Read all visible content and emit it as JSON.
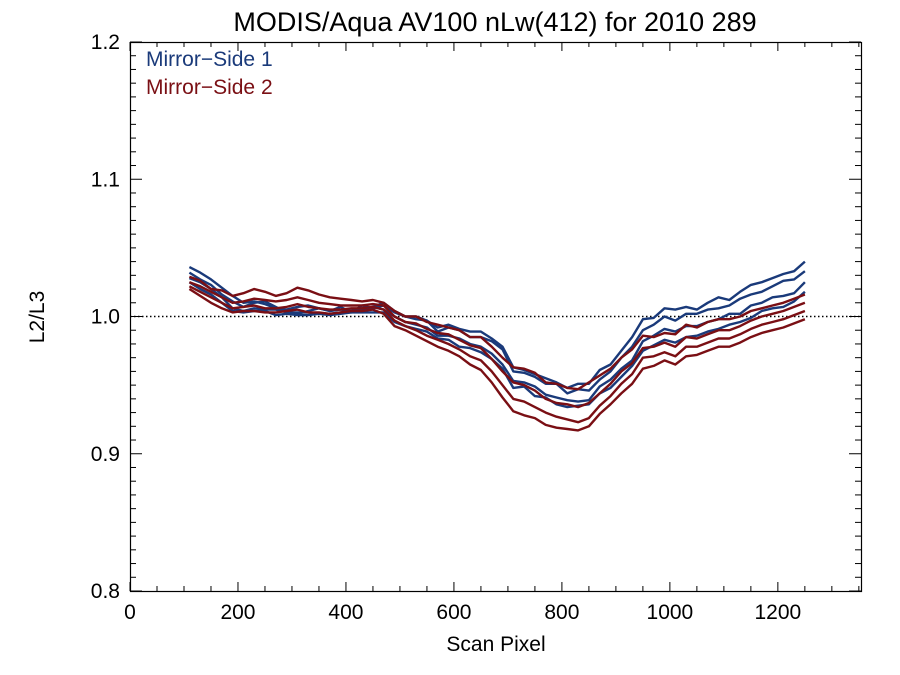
{
  "chart_data": {
    "type": "line",
    "title": "MODIS/Aqua AV100 nLw(412) for 2010 289",
    "xlabel": "Scan Pixel",
    "ylabel": "L2/L3",
    "xlim": [
      0,
      1354
    ],
    "ylim": [
      0.8,
      1.2
    ],
    "x_ticks": [
      "0",
      "200",
      "400",
      "600",
      "800",
      "1000",
      "1200"
    ],
    "y_ticks": [
      "0.8",
      "0.9",
      "1.0",
      "1.1",
      "1.2"
    ],
    "reference_line": {
      "y": 1.0,
      "style": "dotted"
    },
    "legend": {
      "placement": "top-left",
      "entries": [
        "Mirror−Side 1",
        "Mirror−Side 2"
      ]
    },
    "colors": {
      "mirror_side_1": "#1a3a7a",
      "mirror_side_2": "#7a0f14"
    },
    "x": [
      110,
      130,
      150,
      170,
      190,
      210,
      230,
      250,
      270,
      290,
      310,
      330,
      350,
      370,
      390,
      410,
      430,
      450,
      470,
      490,
      510,
      530,
      550,
      570,
      590,
      610,
      630,
      650,
      670,
      690,
      710,
      730,
      750,
      770,
      790,
      810,
      830,
      850,
      870,
      890,
      910,
      930,
      950,
      970,
      990,
      1010,
      1030,
      1050,
      1070,
      1090,
      1110,
      1130,
      1150,
      1170,
      1190,
      1210,
      1230,
      1250
    ],
    "series": [
      {
        "name": "Mirror−Side 1",
        "color": "#1a3a7a",
        "values": [
          1.036,
          1.032,
          1.027,
          1.021,
          1.015,
          1.01,
          1.011,
          1.009,
          1.006,
          1.005,
          1.007,
          1.008,
          1.006,
          1.004,
          1.005,
          1.004,
          1.006,
          1.007,
          1.01,
          1.004,
          1.0,
          1.0,
          0.997,
          0.992,
          0.994,
          0.991,
          0.989,
          0.989,
          0.984,
          0.978,
          0.963,
          0.961,
          0.958,
          0.955,
          0.952,
          0.948,
          0.951,
          0.951,
          0.961,
          0.965,
          0.975,
          0.985,
          0.998,
          0.999,
          1.006,
          1.005,
          1.007,
          1.005,
          1.01,
          1.014,
          1.012,
          1.018,
          1.023,
          1.025,
          1.028,
          1.031,
          1.033,
          1.04
        ]
      },
      {
        "name": "Mirror−Side 1",
        "color": "#1a3a7a",
        "values": [
          1.032,
          1.027,
          1.023,
          1.016,
          1.011,
          1.007,
          1.01,
          1.011,
          1.007,
          1.003,
          1.002,
          1.004,
          1.006,
          1.004,
          1.007,
          1.003,
          1.008,
          1.006,
          1.008,
          1.003,
          1.0,
          0.998,
          0.997,
          0.989,
          0.992,
          0.99,
          0.985,
          0.985,
          0.982,
          0.976,
          0.96,
          0.959,
          0.956,
          0.951,
          0.951,
          0.944,
          0.947,
          0.946,
          0.954,
          0.96,
          0.97,
          0.978,
          0.99,
          0.994,
          1.0,
          0.997,
          1.002,
          1.002,
          1.005,
          1.006,
          1.008,
          1.013,
          1.016,
          1.018,
          1.022,
          1.026,
          1.027,
          1.033
        ]
      },
      {
        "name": "Mirror−Side 1",
        "color": "#1a3a7a",
        "values": [
          1.028,
          1.025,
          1.02,
          1.014,
          1.006,
          1.004,
          1.006,
          1.005,
          1.005,
          1.003,
          1.003,
          1.003,
          1.002,
          1.002,
          1.003,
          1.004,
          1.005,
          1.007,
          1.005,
          1.0,
          0.996,
          0.994,
          0.992,
          0.986,
          0.986,
          0.984,
          0.98,
          0.978,
          0.973,
          0.965,
          0.953,
          0.952,
          0.949,
          0.943,
          0.941,
          0.939,
          0.938,
          0.939,
          0.949,
          0.954,
          0.962,
          0.968,
          0.982,
          0.986,
          0.991,
          0.989,
          0.993,
          0.993,
          0.996,
          0.998,
          1.002,
          1.002,
          1.008,
          1.01,
          1.014,
          1.015,
          1.017,
          1.025
        ]
      },
      {
        "name": "Mirror−Side 1",
        "color": "#1a3a7a",
        "values": [
          1.025,
          1.02,
          1.016,
          1.01,
          1.004,
          1.003,
          1.004,
          1.004,
          1.001,
          1.002,
          1.001,
          1.001,
          1.002,
          1.001,
          1.002,
          1.003,
          1.003,
          1.003,
          1.003,
          0.996,
          0.993,
          0.991,
          0.989,
          0.984,
          0.983,
          0.978,
          0.977,
          0.974,
          0.969,
          0.962,
          0.948,
          0.949,
          0.942,
          0.941,
          0.936,
          0.934,
          0.935,
          0.936,
          0.944,
          0.948,
          0.956,
          0.964,
          0.975,
          0.979,
          0.983,
          0.981,
          0.985,
          0.986,
          0.989,
          0.991,
          0.994,
          0.996,
          0.999,
          1.004,
          1.006,
          1.007,
          1.011,
          1.018
        ]
      },
      {
        "name": "Mirror−Side 2",
        "color": "#7a0f14",
        "values": [
          1.029,
          1.026,
          1.02,
          1.019,
          1.015,
          1.017,
          1.02,
          1.018,
          1.015,
          1.017,
          1.021,
          1.019,
          1.016,
          1.014,
          1.013,
          1.012,
          1.011,
          1.012,
          1.01,
          1.004,
          1.0,
          1.0,
          0.996,
          0.994,
          0.992,
          0.99,
          0.985,
          0.985,
          0.978,
          0.97,
          0.963,
          0.962,
          0.959,
          0.952,
          0.951,
          0.948,
          0.947,
          0.952,
          0.957,
          0.962,
          0.97,
          0.976,
          0.986,
          0.985,
          0.988,
          0.987,
          0.994,
          0.992,
          0.996,
          0.998,
          0.998,
          1.0,
          1.004,
          1.006,
          1.008,
          1.01,
          1.013,
          1.016
        ]
      },
      {
        "name": "Mirror−Side 2",
        "color": "#7a0f14",
        "values": [
          1.025,
          1.022,
          1.018,
          1.014,
          1.01,
          1.011,
          1.013,
          1.012,
          1.011,
          1.012,
          1.014,
          1.012,
          1.01,
          1.009,
          1.008,
          1.008,
          1.008,
          1.009,
          1.008,
          1.0,
          0.996,
          0.995,
          0.991,
          0.988,
          0.987,
          0.983,
          0.979,
          0.977,
          0.969,
          0.96,
          0.952,
          0.95,
          0.946,
          0.94,
          0.937,
          0.936,
          0.934,
          0.937,
          0.944,
          0.951,
          0.96,
          0.966,
          0.977,
          0.978,
          0.981,
          0.978,
          0.985,
          0.984,
          0.987,
          0.99,
          0.99,
          0.993,
          0.997,
          1.0,
          1.002,
          1.004,
          1.007,
          1.01
        ]
      },
      {
        "name": "Mirror−Side 2",
        "color": "#7a0f14",
        "values": [
          1.022,
          1.018,
          1.014,
          1.01,
          1.006,
          1.007,
          1.008,
          1.006,
          1.006,
          1.007,
          1.009,
          1.007,
          1.006,
          1.005,
          1.005,
          1.006,
          1.006,
          1.007,
          1.005,
          0.997,
          0.993,
          0.99,
          0.986,
          0.983,
          0.98,
          0.976,
          0.971,
          0.968,
          0.96,
          0.95,
          0.94,
          0.938,
          0.934,
          0.93,
          0.927,
          0.925,
          0.923,
          0.926,
          0.935,
          0.942,
          0.951,
          0.958,
          0.97,
          0.971,
          0.974,
          0.971,
          0.978,
          0.978,
          0.981,
          0.984,
          0.984,
          0.987,
          0.991,
          0.994,
          0.996,
          0.998,
          1.001,
          1.004
        ]
      },
      {
        "name": "Mirror−Side 2",
        "color": "#7a0f14",
        "values": [
          1.02,
          1.015,
          1.01,
          1.006,
          1.003,
          1.004,
          1.004,
          1.003,
          1.003,
          1.004,
          1.005,
          1.003,
          1.003,
          1.002,
          1.003,
          1.004,
          1.004,
          1.005,
          1.002,
          0.993,
          0.99,
          0.986,
          0.982,
          0.978,
          0.975,
          0.971,
          0.965,
          0.961,
          0.952,
          0.941,
          0.931,
          0.928,
          0.926,
          0.921,
          0.919,
          0.918,
          0.917,
          0.92,
          0.929,
          0.936,
          0.944,
          0.951,
          0.962,
          0.964,
          0.968,
          0.965,
          0.971,
          0.972,
          0.975,
          0.978,
          0.978,
          0.981,
          0.985,
          0.988,
          0.99,
          0.992,
          0.995,
          0.998
        ]
      }
    ]
  }
}
